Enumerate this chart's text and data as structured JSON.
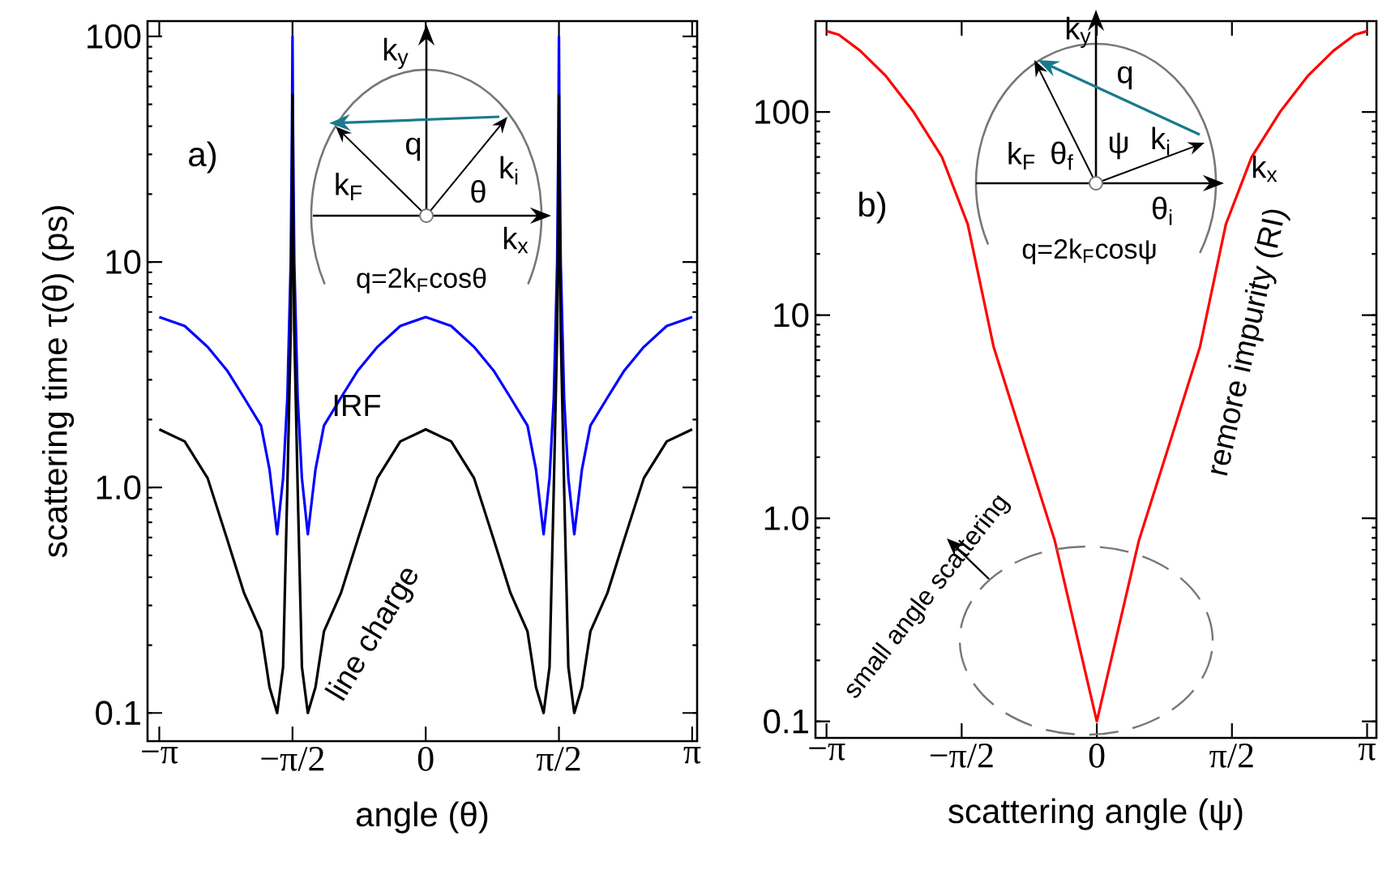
{
  "chart_data": [
    {
      "type": "line",
      "xlabel": "angle (θ)",
      "ylabel": "scattering time τ(θ) (ps)",
      "log": "y",
      "xlim": [
        -3.28,
        3.2
      ],
      "ylim": [
        0.075,
        117
      ],
      "xticks": [
        {
          "value": -3.1416,
          "label": "−π"
        },
        {
          "value": -1.5708,
          "label": "−π/2"
        },
        0,
        {
          "value": 1.5708,
          "label": "π/2"
        },
        {
          "value": 3.1416,
          "label": "π"
        }
      ],
      "yticks": [
        0.1,
        {
          "value": 1,
          "label": "1.0"
        },
        10,
        100
      ],
      "x": [
        -3.1416,
        -2.8416,
        -2.5716,
        -2.3416,
        -2.1416,
        -1.9416,
        -1.8416,
        -1.7516,
        -1.6816,
        -1.6316,
        -1.5916,
        -1.5766,
        -1.5708,
        -1.565,
        -1.55,
        -1.51,
        -1.46,
        -1.39,
        -1.3,
        -1.2,
        -1.0,
        -0.8,
        -0.57,
        -0.3,
        0,
        0.3,
        0.57,
        0.8,
        1.0,
        1.2,
        1.3,
        1.39,
        1.46,
        1.51,
        1.55,
        1.565,
        1.5708,
        1.5766,
        1.5916,
        1.6316,
        1.6816,
        1.7516,
        1.8416,
        1.9416,
        2.1416,
        2.3416,
        2.5716,
        2.8416,
        3.1416
      ],
      "series": [
        {
          "name": "IRF",
          "color": "#0000ff",
          "values": [
            5.7,
            5.2,
            4.2,
            3.3,
            2.5,
            1.88,
            1.2,
            0.62,
            1.1,
            2.5,
            10,
            40,
            100,
            40,
            10,
            2.5,
            1.1,
            0.62,
            1.2,
            1.88,
            2.5,
            3.3,
            4.2,
            5.2,
            5.7,
            5.2,
            4.2,
            3.3,
            2.5,
            1.88,
            1.2,
            0.62,
            1.1,
            2.5,
            10,
            40,
            100,
            40,
            10,
            2.5,
            1.1,
            0.62,
            1.2,
            1.88,
            2.5,
            3.3,
            4.2,
            5.2,
            5.7
          ]
        },
        {
          "name": "line charge",
          "color": "#000000",
          "values": [
            1.81,
            1.6,
            1.1,
            0.59,
            0.34,
            0.23,
            0.13,
            0.1,
            0.16,
            1.0,
            5,
            20,
            55,
            20,
            5,
            1.0,
            0.16,
            0.1,
            0.13,
            0.23,
            0.34,
            0.59,
            1.1,
            1.6,
            1.81,
            1.6,
            1.1,
            0.59,
            0.34,
            0.23,
            0.13,
            0.1,
            0.16,
            1.0,
            5,
            20,
            55,
            20,
            5,
            1.0,
            0.16,
            0.1,
            0.13,
            0.23,
            0.34,
            0.59,
            1.1,
            1.6,
            1.81
          ]
        }
      ],
      "annotations": [
        "a)",
        "k$_{y}$",
        "k$_{x}$",
        "q",
        "k$_{F}$",
        "k$_{i}$",
        "θ",
        "q=2k$_{F}$cosθ"
      ]
    },
    {
      "type": "line",
      "xlabel": "scattering angle (ψ)",
      "log": "y",
      "xlim": [
        -3.27,
        3.25
      ],
      "ylim": [
        0.083,
        280
      ],
      "xticks": [
        {
          "value": -3.1416,
          "label": "−π"
        },
        {
          "value": -1.5708,
          "label": "−π/2"
        },
        0,
        {
          "value": 1.5708,
          "label": "π/2"
        },
        {
          "value": 3.1416,
          "label": "π"
        }
      ],
      "yticks": [
        0.1,
        {
          "value": 1,
          "label": "1.0"
        },
        10,
        100
      ],
      "x": [
        -3.1416,
        -3.0,
        -2.75,
        -2.45,
        -2.13,
        -1.8,
        -1.5,
        -1.2,
        -0.868,
        -0.49,
        0,
        0.49,
        0.868,
        1.2,
        1.5,
        1.8,
        2.13,
        2.45,
        2.75,
        3.0,
        3.1416
      ],
      "series": [
        {
          "name": "remore impurity (RI)",
          "color": "#ff0000",
          "values": [
            250,
            240,
            200,
            150,
            100,
            60,
            28,
            7,
            2.5,
            0.78,
            0.1,
            0.78,
            2.5,
            7,
            28,
            60,
            100,
            150,
            200,
            240,
            250
          ]
        }
      ],
      "annotations": [
        "b)",
        "k$_{y}$",
        "k$_{x}$",
        "q",
        "k$_{F}$",
        "θ$_{f}$",
        "ψ",
        "k$_{i}$",
        "θ$_{i}$",
        "q=2k$_{F}$cosψ",
        "small angle scattering"
      ]
    }
  ]
}
